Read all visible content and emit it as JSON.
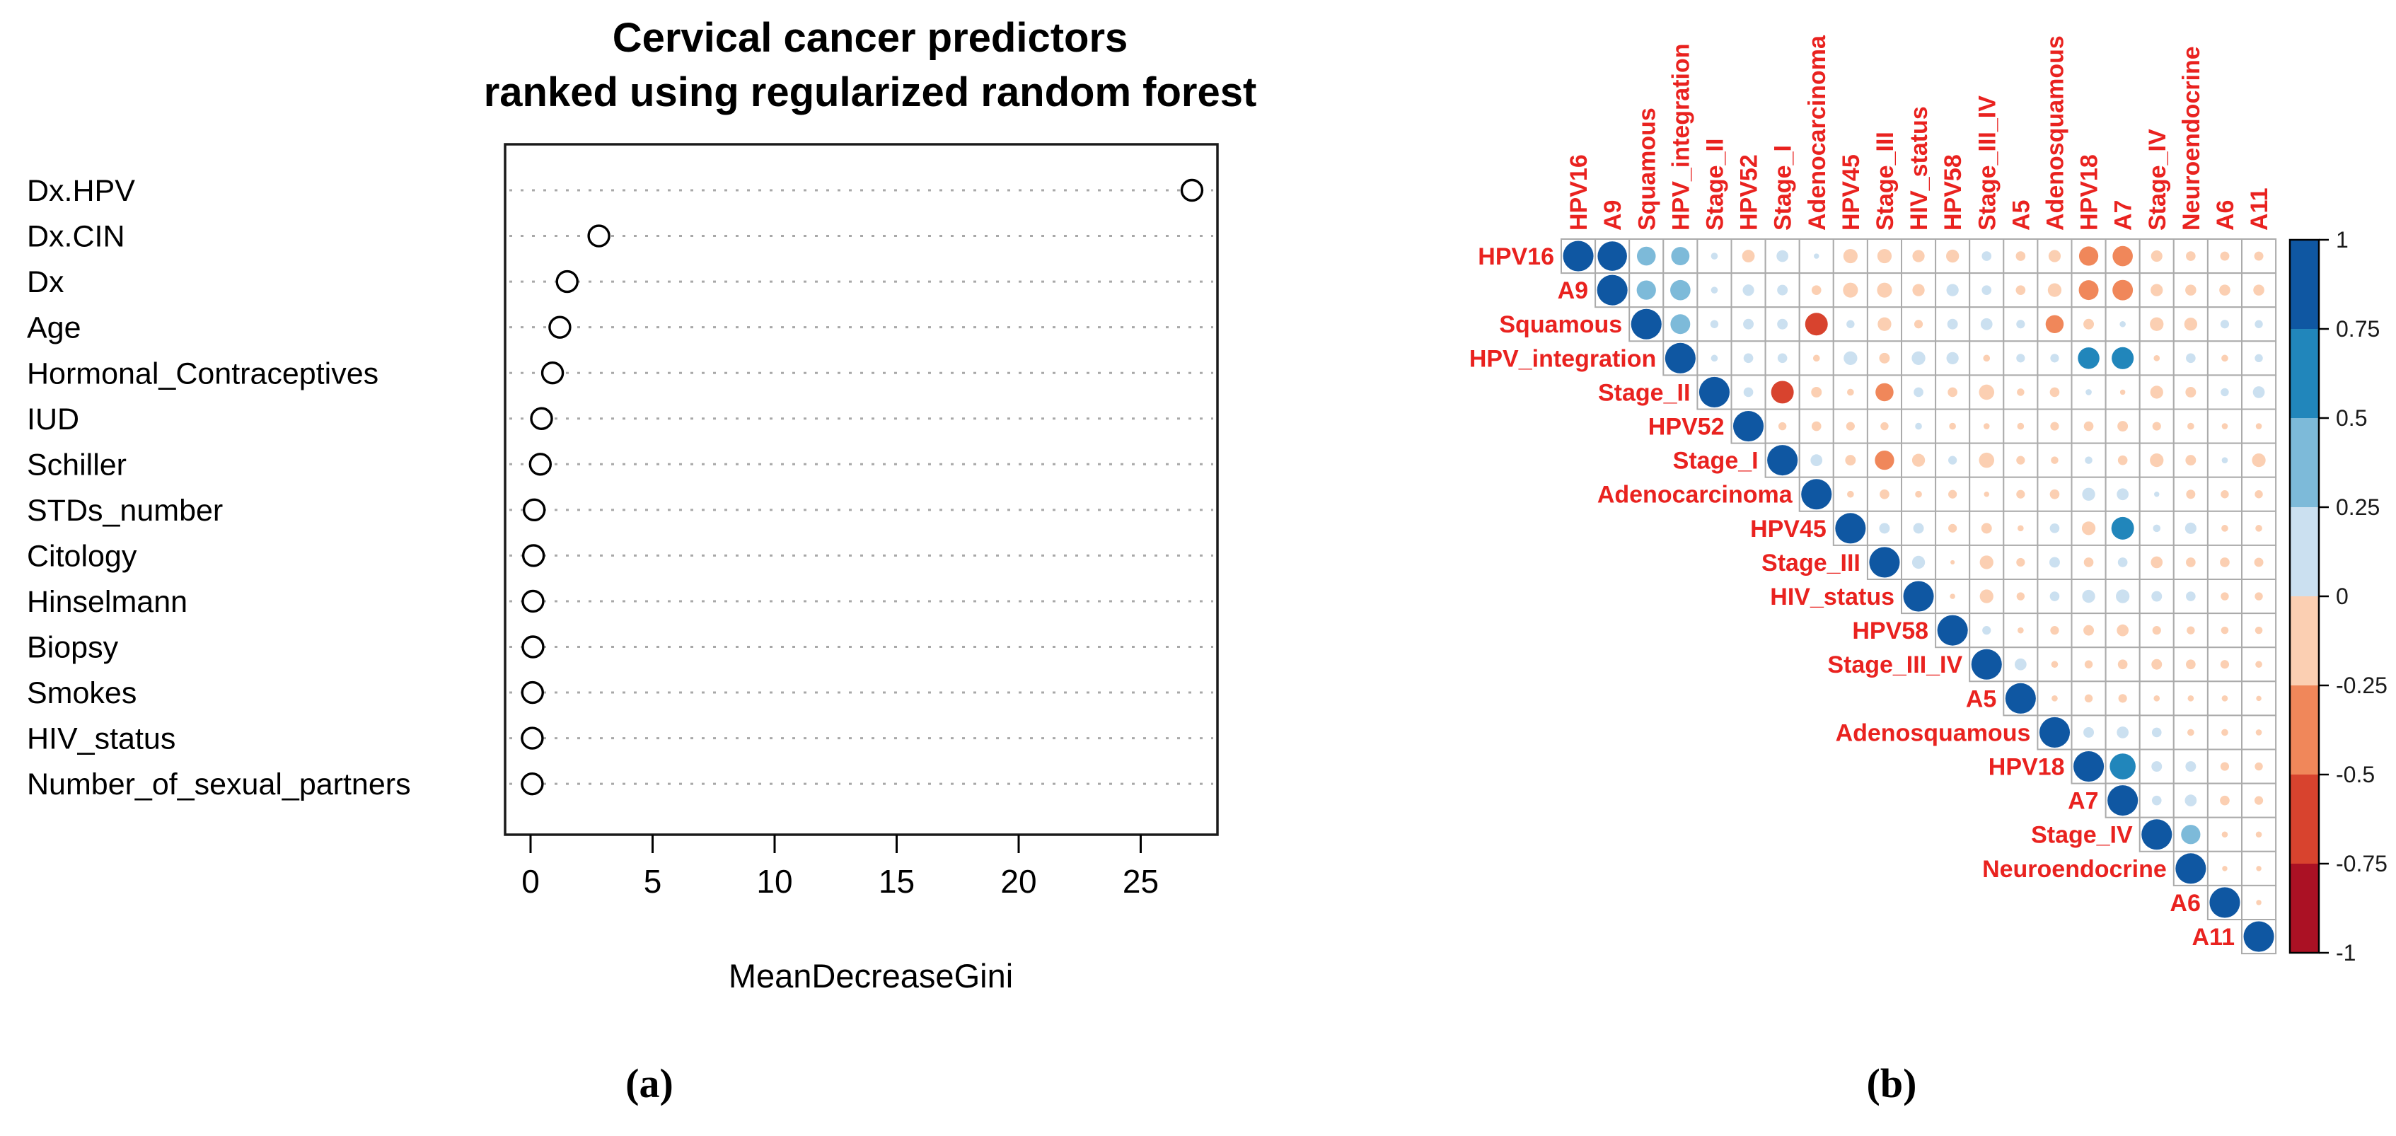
{
  "figure": {
    "panel_a": {
      "title_line1": "Cervical cancer predictors",
      "title_line2": "ranked using regularized random forest",
      "xlabel": "MeanDecreaseGini",
      "caption": "(a)"
    },
    "panel_b": {
      "caption": "(b)"
    }
  },
  "chart_data": [
    {
      "type": "scatter",
      "subtype": "dotchart",
      "title": "Cervical cancer predictors ranked using regularized random forest",
      "xlabel": "MeanDecreaseGini",
      "ylabel": "",
      "xlim": [
        -1,
        28.2
      ],
      "xticks": [
        0,
        5,
        10,
        15,
        20,
        25
      ],
      "grid": "dotted-horizontal",
      "legend_position": "none",
      "marker": "open-circle",
      "categories": [
        "Dx.HPV",
        "Dx.CIN",
        "Dx",
        "Age",
        "Hormonal_Contraceptives",
        "IUD",
        "Schiller",
        "STDs_number",
        "Citology",
        "Hinselmann",
        "Biopsy",
        "Smokes",
        "HIV_status",
        "Number_of_sexual_partners"
      ],
      "values": [
        27.1,
        2.8,
        1.5,
        1.2,
        0.9,
        0.45,
        0.4,
        0.15,
        0.12,
        0.1,
        0.1,
        0.08,
        0.07,
        0.07
      ]
    },
    {
      "type": "heatmap",
      "subtype": "correlation-upper-circles",
      "labels": [
        "HPV16",
        "A9",
        "Squamous",
        "HPV_integration",
        "Stage_II",
        "HPV52",
        "Stage_I",
        "Adenocarcinoma",
        "HPV45",
        "Stage_III",
        "HIV_status",
        "HPV58",
        "Stage_III_IV",
        "A5",
        "Adenosquamous",
        "HPV18",
        "A7",
        "Stage_IV",
        "Neuroendocrine",
        "A6",
        "A11"
      ],
      "label_color": "#e9221f",
      "colorbar_ticks": [
        1,
        0.75,
        0.5,
        0.25,
        0,
        -0.25,
        -0.5,
        -0.75,
        -1
      ],
      "band_colors": [
        "#0f57a2",
        "#2186bb",
        "#7dbad9",
        "#cbe0f0",
        "#fbcfb2",
        "#f0875a",
        "#d8432e",
        "#ab1124"
      ],
      "matrix": [
        [
          1,
          0.93,
          0.38,
          0.36,
          0.05,
          -0.17,
          0.15,
          0.03,
          -0.22,
          -0.22,
          -0.16,
          -0.18,
          0.1,
          -0.1,
          -0.16,
          -0.4,
          -0.44,
          -0.14,
          -0.1,
          -0.09,
          -0.09
        ],
        [
          null,
          1,
          0.4,
          0.44,
          0.05,
          0.14,
          0.12,
          -0.1,
          -0.24,
          -0.24,
          -0.16,
          0.16,
          0.1,
          -0.1,
          -0.2,
          -0.42,
          -0.45,
          -0.16,
          -0.13,
          -0.13,
          -0.13
        ],
        [
          null,
          null,
          1,
          0.42,
          0.07,
          0.12,
          0.12,
          -0.55,
          0.07,
          -0.2,
          -0.08,
          0.12,
          0.15,
          0.08,
          -0.35,
          -0.12,
          0.04,
          -0.2,
          -0.18,
          0.08,
          0.07
        ],
        [
          null,
          null,
          null,
          1,
          0.05,
          0.1,
          0.1,
          -0.05,
          0.2,
          -0.12,
          0.2,
          0.16,
          -0.05,
          0.08,
          0.08,
          0.5,
          0.52,
          -0.04,
          0.1,
          -0.05,
          0.07
        ],
        [
          null,
          null,
          null,
          null,
          1,
          0.1,
          -0.55,
          -0.12,
          -0.05,
          -0.35,
          0.1,
          -0.1,
          -0.25,
          -0.06,
          -0.1,
          0.04,
          -0.03,
          -0.18,
          -0.12,
          0.07,
          0.15
        ],
        [
          null,
          null,
          null,
          null,
          null,
          1,
          -0.07,
          -0.1,
          -0.08,
          -0.07,
          0.05,
          -0.05,
          -0.04,
          -0.05,
          -0.08,
          -0.1,
          -0.12,
          -0.08,
          -0.05,
          -0.04,
          -0.04
        ],
        [
          null,
          null,
          null,
          null,
          null,
          null,
          1,
          0.15,
          -0.12,
          -0.4,
          -0.18,
          0.08,
          -0.25,
          -0.08,
          -0.06,
          0.06,
          -0.1,
          -0.2,
          -0.12,
          0.04,
          -0.2
        ],
        [
          null,
          null,
          null,
          null,
          null,
          null,
          null,
          1,
          -0.05,
          -0.1,
          -0.05,
          -0.08,
          -0.03,
          -0.08,
          -0.1,
          0.18,
          0.15,
          0.03,
          -0.09,
          -0.07,
          -0.07
        ],
        [
          null,
          null,
          null,
          null,
          null,
          null,
          null,
          null,
          1,
          0.12,
          0.12,
          -0.08,
          -0.12,
          -0.04,
          0.1,
          -0.2,
          0.55,
          0.06,
          0.14,
          -0.05,
          -0.05
        ],
        [
          null,
          null,
          null,
          null,
          null,
          null,
          null,
          null,
          null,
          1,
          0.18,
          -0.02,
          -0.2,
          -0.08,
          0.12,
          -0.1,
          0.1,
          -0.15,
          -0.1,
          -0.1,
          -0.09
        ],
        [
          null,
          null,
          null,
          null,
          null,
          null,
          null,
          null,
          null,
          null,
          1,
          -0.03,
          -0.2,
          -0.07,
          0.1,
          0.18,
          0.2,
          0.12,
          0.1,
          -0.07,
          -0.07
        ],
        [
          null,
          null,
          null,
          null,
          null,
          null,
          null,
          null,
          null,
          null,
          null,
          1,
          0.08,
          -0.04,
          -0.08,
          -0.12,
          -0.15,
          -0.08,
          -0.07,
          -0.06,
          -0.06
        ],
        [
          null,
          null,
          null,
          null,
          null,
          null,
          null,
          null,
          null,
          null,
          null,
          null,
          1,
          0.15,
          -0.05,
          -0.07,
          -0.1,
          -0.12,
          -0.1,
          -0.08,
          -0.05
        ],
        [
          null,
          null,
          null,
          null,
          null,
          null,
          null,
          null,
          null,
          null,
          null,
          null,
          null,
          1,
          -0.04,
          -0.07,
          -0.08,
          -0.04,
          -0.04,
          -0.04,
          -0.03
        ],
        [
          null,
          null,
          null,
          null,
          null,
          null,
          null,
          null,
          null,
          null,
          null,
          null,
          null,
          null,
          1,
          0.12,
          0.15,
          0.1,
          -0.05,
          -0.05,
          -0.04
        ],
        [
          null,
          null,
          null,
          null,
          null,
          null,
          null,
          null,
          null,
          null,
          null,
          null,
          null,
          null,
          null,
          1,
          0.72,
          0.12,
          0.12,
          -0.08,
          -0.07
        ],
        [
          null,
          null,
          null,
          null,
          null,
          null,
          null,
          null,
          null,
          null,
          null,
          null,
          null,
          null,
          null,
          null,
          1,
          0.1,
          0.15,
          -0.1,
          -0.08
        ],
        [
          null,
          null,
          null,
          null,
          null,
          null,
          null,
          null,
          null,
          null,
          null,
          null,
          null,
          null,
          null,
          null,
          null,
          1,
          0.4,
          -0.04,
          -0.04
        ],
        [
          null,
          null,
          null,
          null,
          null,
          null,
          null,
          null,
          null,
          null,
          null,
          null,
          null,
          null,
          null,
          null,
          null,
          null,
          1,
          -0.03,
          -0.03
        ],
        [
          null,
          null,
          null,
          null,
          null,
          null,
          null,
          null,
          null,
          null,
          null,
          null,
          null,
          null,
          null,
          null,
          null,
          null,
          null,
          1,
          -0.03
        ],
        [
          null,
          null,
          null,
          null,
          null,
          null,
          null,
          null,
          null,
          null,
          null,
          null,
          null,
          null,
          null,
          null,
          null,
          null,
          null,
          null,
          1
        ]
      ]
    }
  ]
}
